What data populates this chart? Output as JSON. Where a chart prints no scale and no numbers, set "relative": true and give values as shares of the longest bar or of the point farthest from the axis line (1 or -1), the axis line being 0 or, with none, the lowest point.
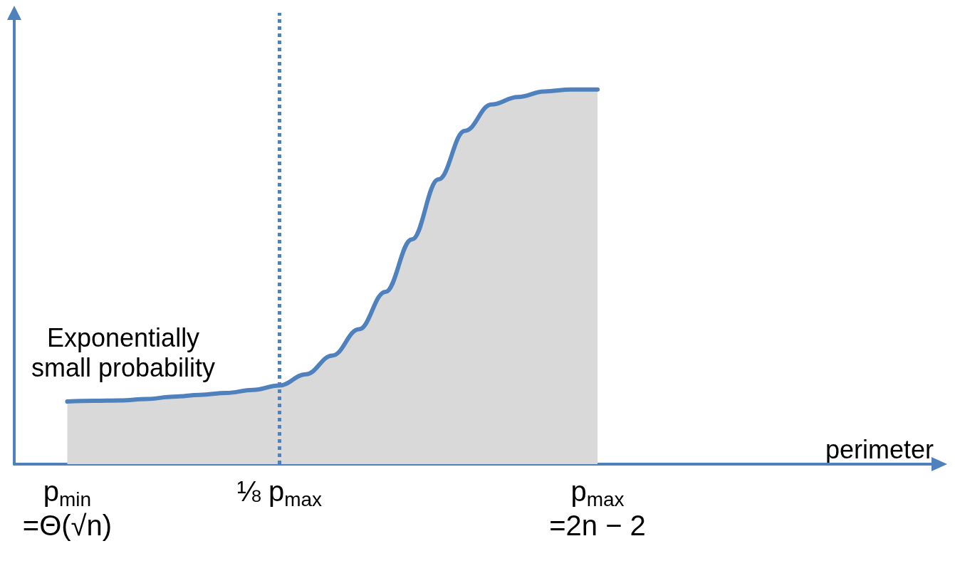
{
  "chart_data": {
    "type": "area",
    "relative": true,
    "xlabel": "perimeter",
    "categories": [
      null,
      null,
      "p$_{min}$\n=Θ(√n)",
      null,
      null,
      null,
      null,
      null,
      null,
      null,
      "⅛ p$_{max}$",
      null,
      null,
      null,
      null,
      null,
      null,
      null,
      null,
      null,
      null,
      null,
      "p$_{max}$\n=2n − 2",
      null,
      null,
      null,
      null,
      null,
      null,
      null,
      null,
      null,
      null,
      null,
      null,
      null
    ],
    "series": [
      {
        "color": "#4f81bd",
        "values": [
          null,
          null,
          0.167,
          0.169,
          0.17,
          0.174,
          0.18,
          0.185,
          0.19,
          0.198,
          0.21,
          0.24,
          0.29,
          0.36,
          0.46,
          0.6,
          0.76,
          0.89,
          0.96,
          0.98,
          0.995,
          1,
          1,
          null,
          null,
          null,
          null,
          null,
          null,
          null,
          null,
          null,
          null,
          null,
          null,
          null
        ]
      }
    ],
    "ref_lines": [
      {
        "axis": "x",
        "value": "⅛ p$_{max}$",
        "line_style": "dotted"
      }
    ],
    "annotations": [
      "Exponentially\nsmall probability"
    ],
    "grid": false
  }
}
